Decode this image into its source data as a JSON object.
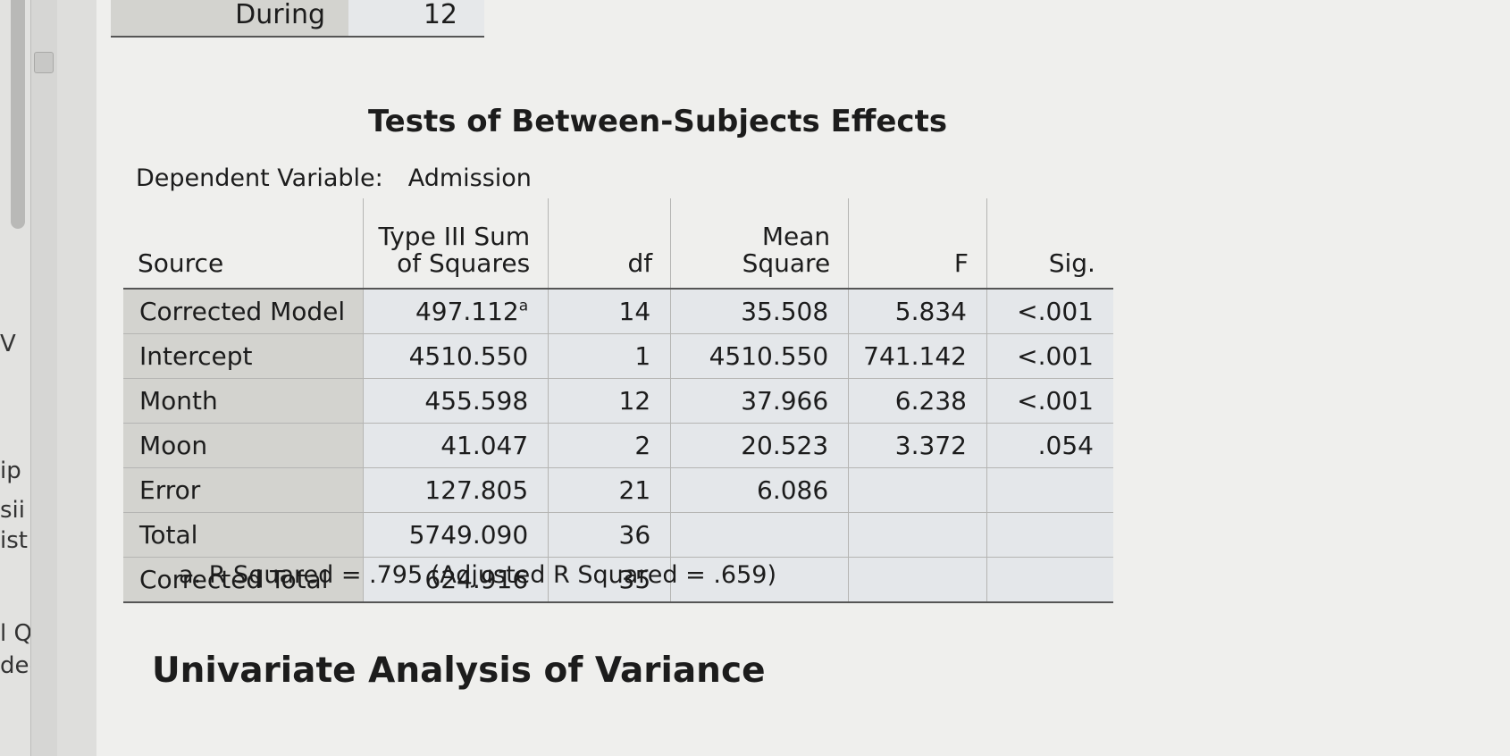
{
  "left_pane": {
    "fragments": [
      {
        "text": "V"
      },
      {
        "text": "ip"
      },
      {
        "text": "sii"
      },
      {
        "text": "ist"
      },
      {
        "text": "l Q"
      },
      {
        "text": "dec"
      }
    ]
  },
  "previous_table": {
    "row_label": "During",
    "row_value": "12"
  },
  "table": {
    "title": "Tests of Between-Subjects Effects",
    "dependent_variable_label": "Dependent Variable:",
    "dependent_variable_value": "Admission",
    "columns": {
      "source": "Source",
      "ss_line1": "Type III Sum",
      "ss_line2": "of Squares",
      "df": "df",
      "ms": "Mean Square",
      "f": "F",
      "sig": "Sig."
    },
    "rows": [
      {
        "source": "Corrected Model",
        "ss": "497.112",
        "ss_note": "a",
        "df": "14",
        "ms": "35.508",
        "f": "5.834",
        "sig": "<.001"
      },
      {
        "source": "Intercept",
        "ss": "4510.550",
        "ss_note": "",
        "df": "1",
        "ms": "4510.550",
        "f": "741.142",
        "sig": "<.001"
      },
      {
        "source": "Month",
        "ss": "455.598",
        "ss_note": "",
        "df": "12",
        "ms": "37.966",
        "f": "6.238",
        "sig": "<.001"
      },
      {
        "source": "Moon",
        "ss": "41.047",
        "ss_note": "",
        "df": "2",
        "ms": "20.523",
        "f": "3.372",
        "sig": ".054"
      },
      {
        "source": "Error",
        "ss": "127.805",
        "ss_note": "",
        "df": "21",
        "ms": "6.086",
        "f": "",
        "sig": ""
      },
      {
        "source": "Total",
        "ss": "5749.090",
        "ss_note": "",
        "df": "36",
        "ms": "",
        "f": "",
        "sig": ""
      },
      {
        "source": "Corrected Total",
        "ss": "624.916",
        "ss_note": "",
        "df": "35",
        "ms": "",
        "f": "",
        "sig": ""
      }
    ],
    "footnote": "a. R Squared = .795 (Adjusted R Squared = .659)"
  },
  "next_section": {
    "title": "Univariate Analysis of Variance"
  }
}
